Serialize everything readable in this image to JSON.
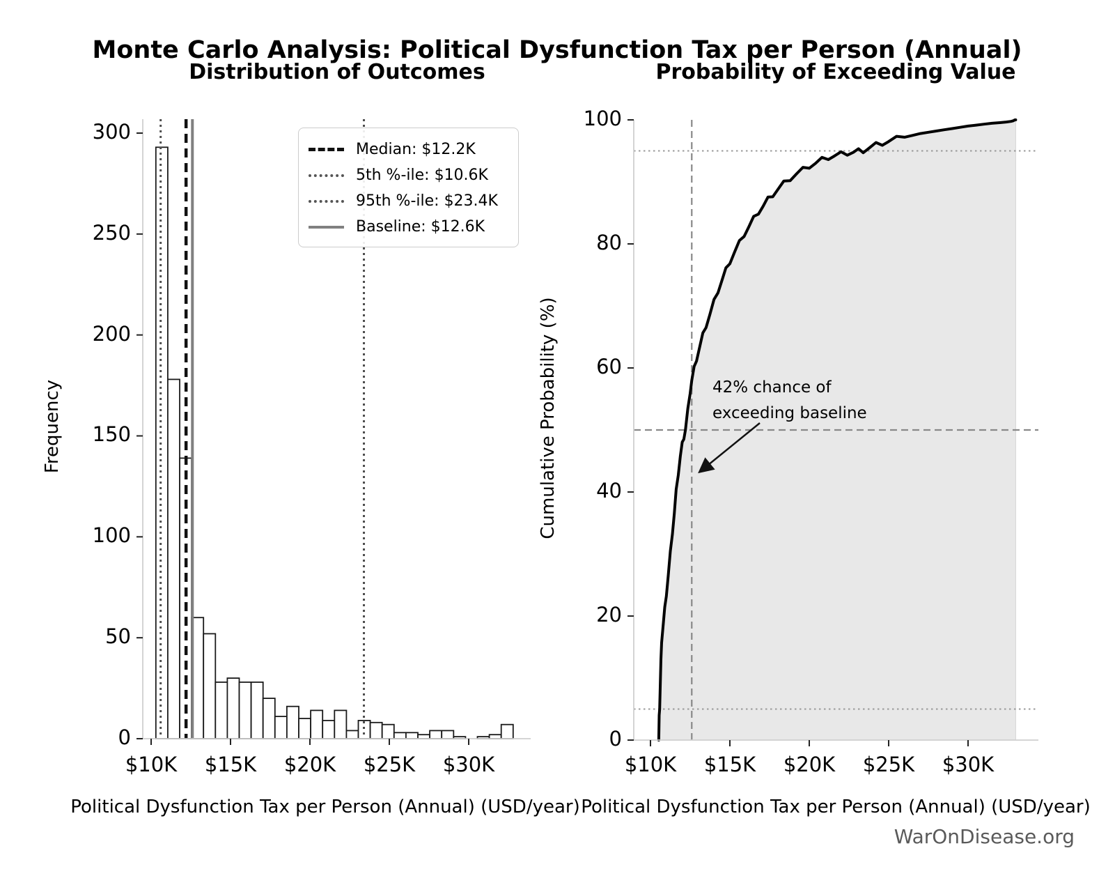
{
  "figure": {
    "title": "Monte Carlo Analysis: Political Dysfunction Tax per Person (Annual)",
    "watermark": "WarOnDisease.org"
  },
  "left_chart": {
    "title": "Distribution of Outcomes",
    "xlabel": "Political Dysfunction Tax per Person (Annual) (USD/year)",
    "ylabel": "Frequency",
    "x_tick_labels": [
      "$10K",
      "$15K",
      "$20K",
      "$25K",
      "$30K"
    ],
    "y_tick_labels": [
      "0",
      "50",
      "100",
      "150",
      "200",
      "250",
      "300"
    ],
    "legend": {
      "items": [
        {
          "label": "Median: $12.2K",
          "style": "median-dashed"
        },
        {
          "label": "5th %-ile: $10.6K",
          "style": "dotted"
        },
        {
          "label": "95th %-ile: $23.4K",
          "style": "dotted"
        },
        {
          "label": "Baseline: $12.6K",
          "style": "baseline-solid"
        }
      ]
    }
  },
  "right_chart": {
    "title": "Probability of Exceeding Value",
    "xlabel": "Political Dysfunction Tax per Person (Annual) (USD/year)",
    "ylabel": "Cumulative Probability (%)",
    "x_tick_labels": [
      "$10K",
      "$15K",
      "$20K",
      "$25K",
      "$30K"
    ],
    "y_tick_labels": [
      "0",
      "20",
      "40",
      "60",
      "80",
      "100"
    ],
    "annotation": {
      "line1": "42% chance of",
      "line2": "exceeding baseline"
    }
  },
  "colors": {
    "bar_fill": "#ffffff",
    "bar_edge": "#1a1a1a",
    "median_line": "#111111",
    "percentile_dotted": "#4d4d4d",
    "baseline_line": "#808080",
    "cdf_curve": "#000000",
    "cdf_fill": "#e8e8e8",
    "guide_dashed": "#888888",
    "guide_dotted": "#999999",
    "spine": "#cfcfcf",
    "tick_mark": "#222222",
    "watermark": "#5a5a5a"
  },
  "chart_data": [
    {
      "type": "bar",
      "title": "Distribution of Outcomes",
      "xlabel": "Political Dysfunction Tax per Person (Annual) (USD/year)",
      "ylabel": "Frequency",
      "bin_start_k": 10.3,
      "bin_width_k": 0.75,
      "frequencies": [
        293,
        178,
        139,
        60,
        52,
        28,
        30,
        28,
        28,
        20,
        11,
        16,
        10,
        14,
        9,
        14,
        4,
        9,
        8,
        7,
        3,
        3,
        2,
        4,
        4,
        1,
        0,
        1,
        2,
        7
      ],
      "x_tick_values_k": [
        10,
        15,
        20,
        25,
        30
      ],
      "y_tick_values": [
        0,
        50,
        100,
        150,
        200,
        250,
        300
      ],
      "ylim": [
        0,
        307
      ],
      "markers": {
        "median_k": 12.2,
        "p5_k": 10.6,
        "p95_k": 23.4,
        "baseline_k": 12.6
      },
      "grid": false,
      "legend_position": "upper right"
    },
    {
      "type": "line",
      "title": "Probability of Exceeding Value",
      "xlabel": "Political Dysfunction Tax per Person (Annual) (USD/year)",
      "ylabel": "Cumulative Probability (%)",
      "x_tick_values_k": [
        10,
        15,
        20,
        25,
        30
      ],
      "y_tick_values": [
        0,
        20,
        40,
        60,
        80,
        100
      ],
      "ylim": [
        0,
        100
      ],
      "area_fill": true,
      "guides": {
        "vertical_dashed_k": 12.6,
        "horizontal_dashed_pct": 50,
        "horizontal_dotted_pct": [
          95,
          5
        ]
      },
      "annotation": {
        "text": "42% chance of exceeding baseline",
        "exceed_probability_pct": 42
      },
      "points": [
        [
          10.52,
          0
        ],
        [
          10.55,
          4
        ],
        [
          10.58,
          5
        ],
        [
          10.62,
          9
        ],
        [
          10.66,
          13
        ],
        [
          10.7,
          16
        ],
        [
          10.8,
          18.5
        ],
        [
          10.9,
          21
        ],
        [
          11.0,
          23.5
        ],
        [
          11.12,
          26.5
        ],
        [
          11.25,
          30
        ],
        [
          11.38,
          33.5
        ],
        [
          11.5,
          36.5
        ],
        [
          11.62,
          40
        ],
        [
          11.75,
          43
        ],
        [
          11.88,
          45.8
        ],
        [
          12.0,
          47.6
        ],
        [
          12.1,
          48.8
        ],
        [
          12.2,
          50
        ],
        [
          12.35,
          53
        ],
        [
          12.5,
          56.2
        ],
        [
          12.6,
          58
        ],
        [
          12.75,
          59.8
        ],
        [
          12.9,
          61.4
        ],
        [
          13.1,
          63.4
        ],
        [
          13.3,
          65.2
        ],
        [
          13.5,
          66.8
        ],
        [
          13.75,
          68.7
        ],
        [
          14.0,
          70.6
        ],
        [
          14.25,
          72.4
        ],
        [
          14.5,
          74.1
        ],
        [
          14.75,
          75.7
        ],
        [
          15.0,
          77.1
        ],
        [
          15.3,
          78.7
        ],
        [
          15.6,
          80.1
        ],
        [
          15.9,
          81.5
        ],
        [
          16.2,
          82.8
        ],
        [
          16.5,
          84.0
        ],
        [
          16.8,
          85.1
        ],
        [
          17.1,
          86.1
        ],
        [
          17.4,
          87.1
        ],
        [
          17.7,
          87.9
        ],
        [
          18.0,
          88.7
        ],
        [
          18.4,
          89.7
        ],
        [
          18.8,
          90.5
        ],
        [
          19.2,
          91.3
        ],
        [
          19.6,
          91.9
        ],
        [
          20.0,
          92.5
        ],
        [
          20.4,
          93.0
        ],
        [
          20.8,
          93.5
        ],
        [
          21.2,
          93.9
        ],
        [
          21.6,
          94.2
        ],
        [
          22.0,
          94.4
        ],
        [
          22.4,
          94.6
        ],
        [
          22.8,
          94.8
        ],
        [
          23.1,
          94.9
        ],
        [
          23.4,
          95.0
        ],
        [
          23.8,
          95.5
        ],
        [
          24.2,
          95.9
        ],
        [
          24.6,
          96.2
        ],
        [
          25.0,
          96.5
        ],
        [
          25.5,
          96.9
        ],
        [
          26.0,
          97.2
        ],
        [
          26.5,
          97.5
        ],
        [
          27.0,
          97.8
        ],
        [
          27.5,
          98.0
        ],
        [
          28.0,
          98.2
        ],
        [
          28.5,
          98.4
        ],
        [
          29.0,
          98.6
        ],
        [
          29.5,
          98.8
        ],
        [
          30.0,
          99.0
        ],
        [
          30.5,
          99.15
        ],
        [
          31.0,
          99.3
        ],
        [
          31.5,
          99.45
        ],
        [
          32.0,
          99.55
        ],
        [
          32.4,
          99.65
        ],
        [
          32.7,
          99.75
        ],
        [
          32.85,
          99.85
        ],
        [
          32.95,
          100
        ],
        [
          33.0,
          100
        ]
      ]
    }
  ]
}
